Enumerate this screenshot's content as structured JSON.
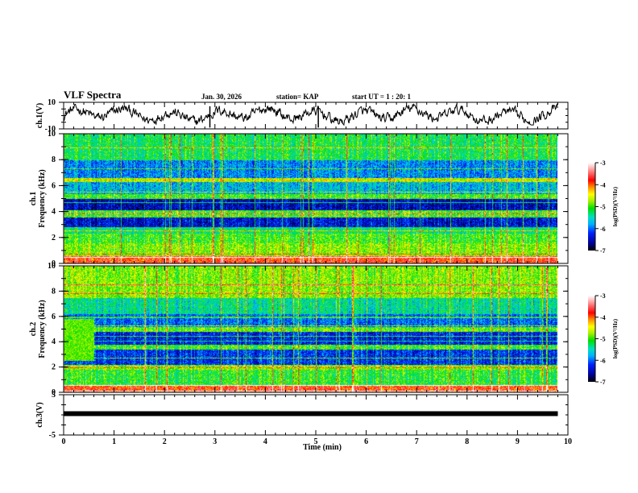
{
  "header": {
    "title": "VLF Spectra",
    "date": "Jan. 30, 2026",
    "station": "station= KAP",
    "start": "start  UT =   1 : 20: 1"
  },
  "chart_data": [
    {
      "type": "line",
      "name": "ch1-waveform",
      "ylabel": "ch.1(V)",
      "ylim": [
        -10,
        10
      ],
      "yticks": [
        "10",
        "-10"
      ],
      "xlim": [
        0,
        10
      ],
      "data_end_min": 9.8,
      "description_values": {
        "mean": 0.5,
        "amplitude": 8
      }
    },
    {
      "type": "heatmap",
      "name": "ch1-spectrogram",
      "ylabel_line1": "ch.1",
      "ylabel_line2": "Frequency  (kHz)",
      "ylim": [
        0,
        10
      ],
      "yticks": [
        "0",
        "2",
        "4",
        "6",
        "8",
        "10"
      ],
      "xlim": [
        0,
        10
      ],
      "bands_khz": [
        {
          "from": 0.0,
          "to": 0.6,
          "level": -3.8
        },
        {
          "from": 0.6,
          "to": 1.6,
          "level": -4.8
        },
        {
          "from": 1.6,
          "to": 2.3,
          "level": -5.0
        },
        {
          "from": 2.3,
          "to": 2.8,
          "level": -5.3
        },
        {
          "from": 2.8,
          "to": 3.6,
          "level": -6.4
        },
        {
          "from": 3.6,
          "to": 4.1,
          "level": -5.0
        },
        {
          "from": 4.1,
          "to": 5.0,
          "level": -6.5
        },
        {
          "from": 5.0,
          "to": 5.4,
          "level": -5.0
        },
        {
          "from": 5.4,
          "to": 6.3,
          "level": -5.7
        },
        {
          "from": 6.3,
          "to": 6.6,
          "level": -4.6
        },
        {
          "from": 6.6,
          "to": 8.0,
          "level": -5.9
        },
        {
          "from": 8.0,
          "to": 10.0,
          "level": -5.2
        }
      ]
    },
    {
      "type": "heatmap",
      "name": "ch2-spectrogram",
      "ylabel_line1": "ch.2",
      "ylabel_line2": "Frequency  (kHz)",
      "ylim": [
        0,
        10
      ],
      "yticks": [
        "0",
        "2",
        "4",
        "6",
        "8",
        "10"
      ],
      "xlim": [
        0,
        10
      ],
      "bands_khz": [
        {
          "from": 0.0,
          "to": 0.6,
          "level": -3.8
        },
        {
          "from": 0.6,
          "to": 1.8,
          "level": -5.1
        },
        {
          "from": 1.8,
          "to": 2.2,
          "level": -4.8
        },
        {
          "from": 2.2,
          "to": 3.4,
          "level": -6.2
        },
        {
          "from": 3.4,
          "to": 3.8,
          "level": -5.0
        },
        {
          "from": 3.8,
          "to": 4.8,
          "level": -6.3
        },
        {
          "from": 4.8,
          "to": 5.2,
          "level": -4.9
        },
        {
          "from": 5.2,
          "to": 6.2,
          "level": -6.0
        },
        {
          "from": 6.2,
          "to": 7.5,
          "level": -5.4
        },
        {
          "from": 7.5,
          "to": 10.0,
          "level": -4.8
        }
      ]
    },
    {
      "type": "line",
      "name": "ch3-waveform",
      "ylabel": "ch.3(V)",
      "ylim": [
        -5,
        5
      ],
      "yticks": [
        "5",
        "-5"
      ],
      "xlim": [
        0,
        10
      ],
      "data_end_min": 9.8,
      "level": 0,
      "band": 0.6
    }
  ],
  "colorbar": {
    "label": "log(PSD)(V²/Hz)",
    "min": -7,
    "max": -3,
    "ticks": [
      "-3",
      "-4",
      "-5",
      "-6",
      "-7"
    ]
  },
  "xaxis": {
    "label": "Time  (min)",
    "ticks": [
      "0",
      "1",
      "2",
      "3",
      "4",
      "5",
      "6",
      "7",
      "8",
      "9",
      "10"
    ]
  }
}
